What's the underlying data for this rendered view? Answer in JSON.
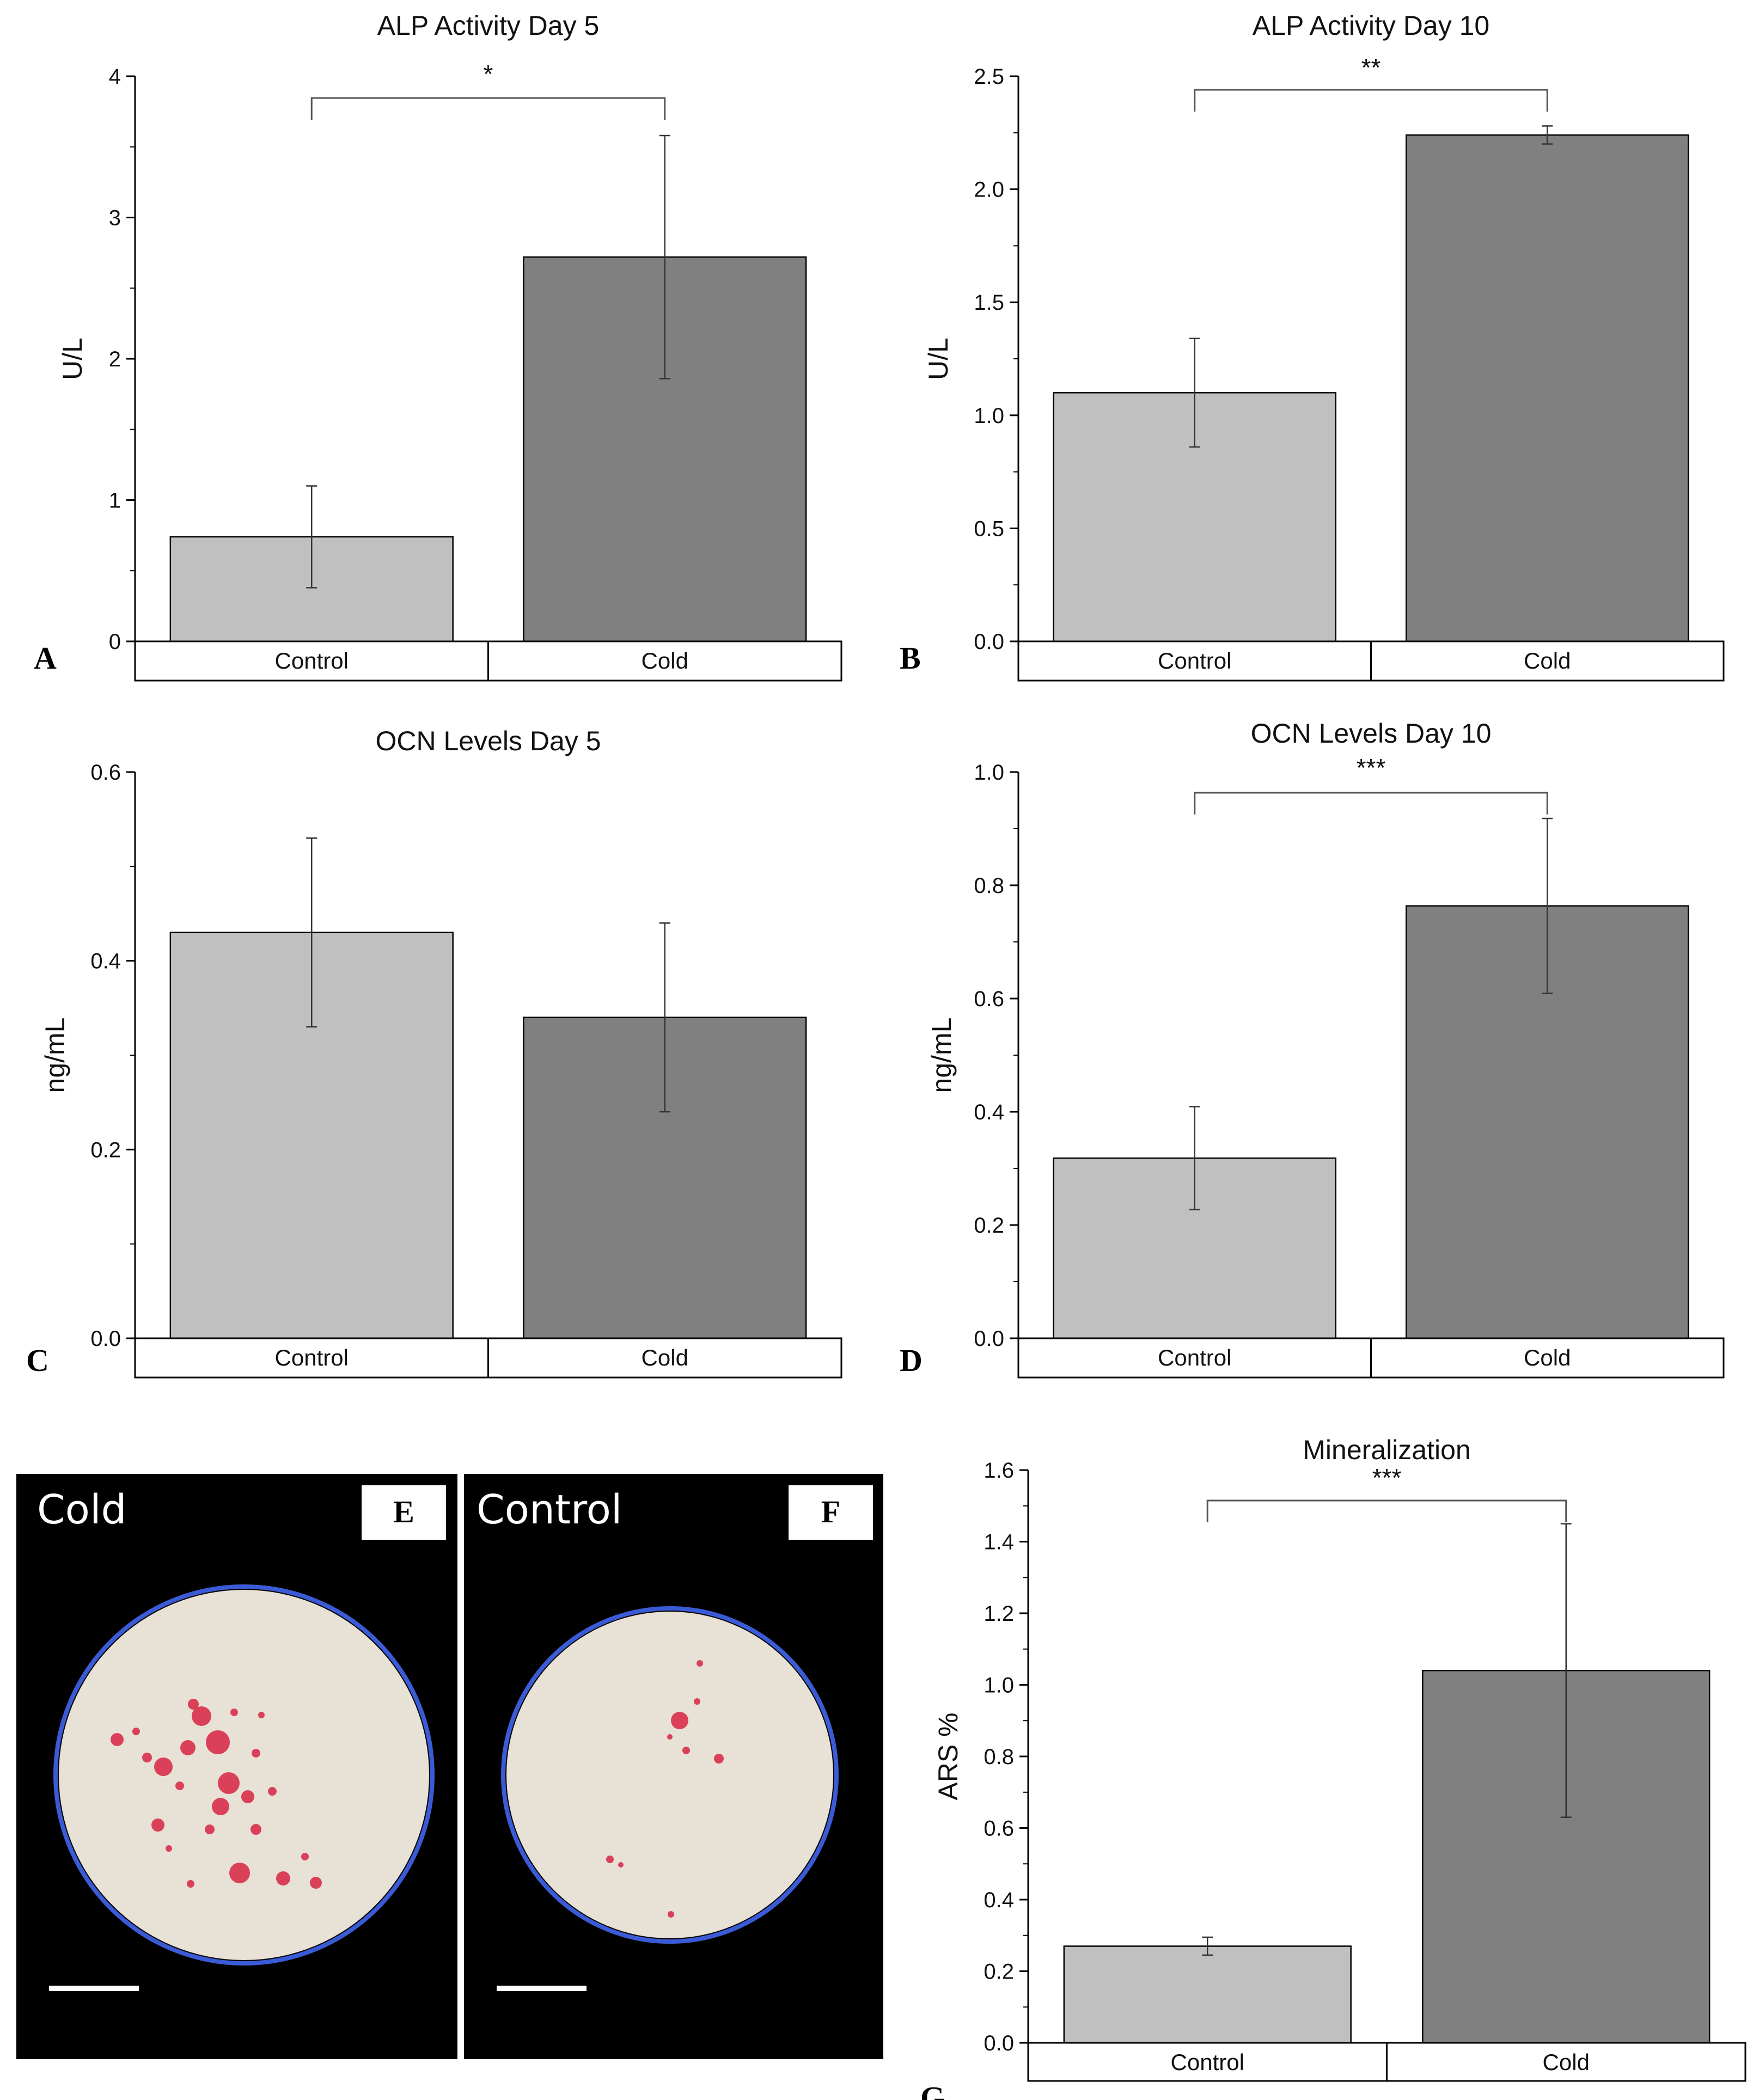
{
  "colors": {
    "control_bar": "#c0c0c0",
    "cold_bar": "#808080",
    "axis": "#000000",
    "photo_background": "#000000",
    "dish_fill": "#e8e1d6",
    "dish_rim": "#3b5bd6",
    "stain": "#d8304a",
    "scale_bar": "#ffffff"
  },
  "chart_data": [
    {
      "panel": "A",
      "type": "bar",
      "title": "ALP Activity Day 5",
      "ylabel": "U/L",
      "xlabel": "",
      "categories": [
        "Control",
        "Cold"
      ],
      "values": [
        0.74,
        2.72
      ],
      "error": [
        0.36,
        0.86
      ],
      "ylim": [
        0,
        4
      ],
      "yticks": [
        "0",
        "1",
        "2",
        "3",
        "4"
      ],
      "significance": "*",
      "grid": false
    },
    {
      "panel": "B",
      "type": "bar",
      "title": "ALP Activity Day 10",
      "ylabel": "U/L",
      "xlabel": "",
      "categories": [
        "Control",
        "Cold"
      ],
      "values": [
        1.1,
        2.24
      ],
      "error": [
        0.24,
        0.04
      ],
      "ylim": [
        0,
        2.5
      ],
      "yticks": [
        "0.0",
        "0.5",
        "1.0",
        "1.5",
        "2.0",
        "2.5"
      ],
      "significance": "**",
      "grid": false
    },
    {
      "panel": "C",
      "type": "bar",
      "title": "OCN Levels Day 5",
      "ylabel": "ng/mL",
      "xlabel": "",
      "categories": [
        "Control",
        "Cold"
      ],
      "values": [
        0.43,
        0.34
      ],
      "error": [
        0.1,
        0.1
      ],
      "ylim": [
        0,
        0.6
      ],
      "yticks": [
        "0.0",
        "0.2",
        "0.4",
        "0.6"
      ],
      "significance": "",
      "grid": false
    },
    {
      "panel": "D",
      "type": "bar",
      "title": "OCN Levels Day 10",
      "ylabel": "ng/mL",
      "xlabel": "",
      "categories": [
        "Control",
        "Cold"
      ],
      "values": [
        0.35,
        0.84
      ],
      "error": [
        0.1,
        0.17
      ],
      "ylim": [
        0,
        1.1
      ],
      "yticks": [
        "0.0",
        "0.2",
        "0.4",
        "0.6",
        "0.8",
        "1.0"
      ],
      "significance": "***",
      "grid": false
    },
    {
      "panel": "G",
      "type": "bar",
      "title": "Mineralization",
      "ylabel": "ARS %",
      "xlabel": "",
      "categories": [
        "Control",
        "Cold"
      ],
      "values": [
        0.27,
        1.04
      ],
      "error": [
        0.025,
        0.41
      ],
      "ylim": [
        0,
        1.6
      ],
      "yticks": [
        "0.0",
        "0.2",
        "0.4",
        "0.6",
        "0.8",
        "1.0",
        "1.2",
        "1.4",
        "1.6"
      ],
      "significance": "***",
      "grid": false
    }
  ],
  "photos": [
    {
      "panel": "E",
      "label": "Cold",
      "tag": "E"
    },
    {
      "panel": "F",
      "label": "Control",
      "tag": "F"
    }
  ]
}
